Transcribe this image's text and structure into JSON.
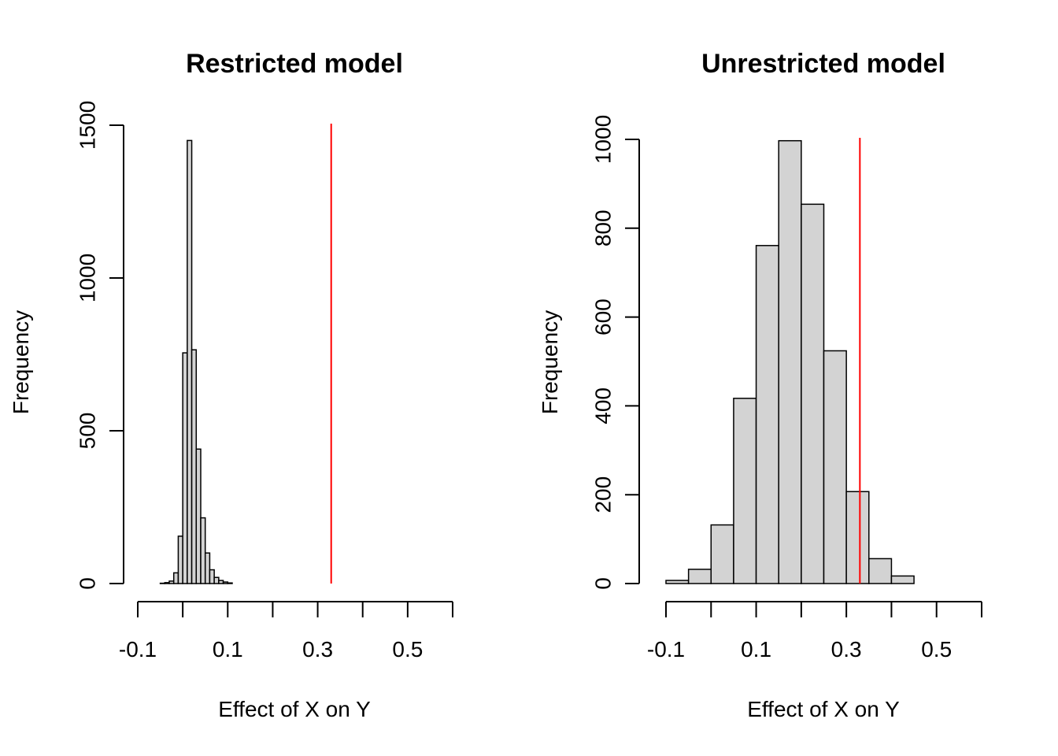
{
  "chart_data": [
    {
      "type": "bar",
      "title": "Restricted model",
      "xlabel": "Effect of X on Y",
      "ylabel": "Frequency",
      "xlim": [
        -0.1,
        0.6
      ],
      "ylim": [
        0,
        1500
      ],
      "xticks": [
        -0.1,
        0.0,
        0.1,
        0.2,
        0.3,
        0.4,
        0.5,
        0.6
      ],
      "xtick_labels": [
        "-0.1",
        "",
        "0.1",
        "",
        "0.3",
        "",
        "0.5",
        ""
      ],
      "yticks": [
        0,
        500,
        1000,
        1500
      ],
      "ytick_labels": [
        "0",
        "500",
        "1000",
        "1500"
      ],
      "bin_width": 0.01,
      "bin_edges": [
        -0.08,
        -0.07,
        -0.06,
        -0.05,
        -0.04,
        -0.03,
        -0.02,
        -0.01,
        0.0,
        0.01,
        0.02,
        0.03,
        0.04,
        0.05,
        0.06,
        0.07,
        0.08,
        0.09,
        0.1,
        0.11
      ],
      "counts": [
        0,
        0,
        0,
        1,
        3,
        8,
        35,
        155,
        755,
        1450,
        765,
        440,
        215,
        100,
        45,
        20,
        10,
        5,
        2
      ],
      "reference_line": {
        "x": 0.33,
        "color": "#ff0000"
      },
      "bar_color": "#d3d3d3",
      "grid": false
    },
    {
      "type": "bar",
      "title": "Unrestricted model",
      "xlabel": "Effect of X on Y",
      "ylabel": "Frequency",
      "xlim": [
        -0.1,
        0.6
      ],
      "ylim": [
        0,
        1000
      ],
      "xticks": [
        -0.1,
        0.0,
        0.1,
        0.2,
        0.3,
        0.4,
        0.5,
        0.6
      ],
      "xtick_labels": [
        "-0.1",
        "",
        "0.1",
        "",
        "0.3",
        "",
        "0.5",
        ""
      ],
      "yticks": [
        0,
        200,
        400,
        600,
        800,
        1000
      ],
      "ytick_labels": [
        "0",
        "200",
        "400",
        "600",
        "800",
        "1000"
      ],
      "bin_width": 0.05,
      "bin_edges": [
        -0.1,
        -0.05,
        0.0,
        0.05,
        0.1,
        0.15,
        0.2,
        0.25,
        0.3,
        0.35,
        0.4,
        0.45,
        0.5
      ],
      "counts": [
        7,
        32,
        132,
        417,
        761,
        997,
        854,
        524,
        207,
        56,
        17,
        0
      ],
      "reference_line": {
        "x": 0.33,
        "color": "#ff0000"
      },
      "bar_color": "#d3d3d3",
      "grid": false
    }
  ]
}
